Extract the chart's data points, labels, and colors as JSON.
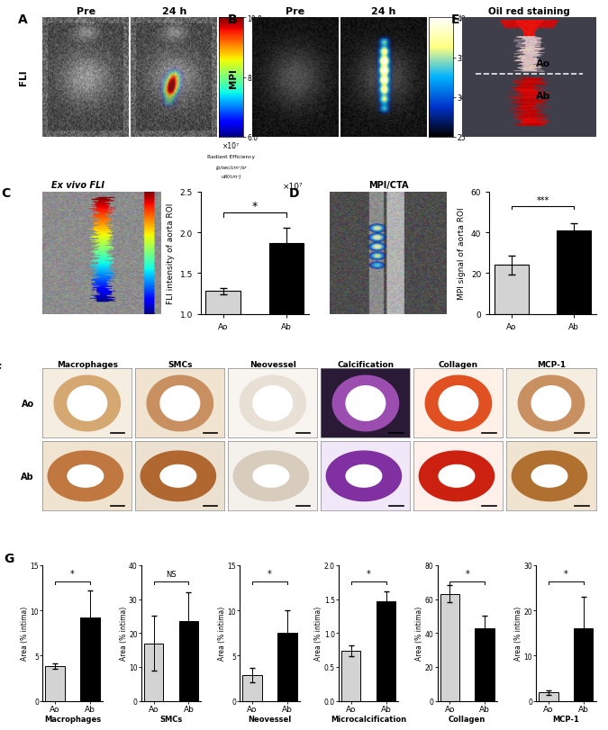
{
  "panel_labels": [
    "A",
    "B",
    "C",
    "D",
    "E",
    "F",
    "G"
  ],
  "colorbar_A_ticks": [
    6.0,
    8.0,
    10.0
  ],
  "colorbar_B_ticks": [
    25,
    30,
    35,
    40
  ],
  "bar_chart_C": {
    "categories": [
      "Ao",
      "Ab"
    ],
    "values": [
      1.28,
      1.87
    ],
    "errors": [
      0.04,
      0.18
    ],
    "colors": [
      "#d3d3d3",
      "#000000"
    ],
    "ylabel": "FLI intensity of aorta ROI",
    "ylim": [
      1.0,
      2.5
    ],
    "yticks": [
      1.0,
      1.5,
      2.0,
      2.5
    ],
    "title_super": "×10⁷",
    "sig_label": "*"
  },
  "bar_chart_D": {
    "categories": [
      "Ao",
      "Ab"
    ],
    "values": [
      24.0,
      41.0
    ],
    "errors": [
      4.5,
      3.5
    ],
    "colors": [
      "#d3d3d3",
      "#000000"
    ],
    "ylabel": "MPI signal of aorta ROI",
    "ylim": [
      0,
      60
    ],
    "yticks": [
      0,
      20,
      40,
      60
    ],
    "sig_label": "***"
  },
  "histology_labels": [
    "Macrophages",
    "SMCs",
    "Neovessel",
    "Calcification",
    "Collagen",
    "MCP-1"
  ],
  "hist_bg": "#f8f0e8",
  "hist_vessel_Ao": [
    "#d4956a",
    "#c8956a",
    "#e8e0d0",
    "#9b59b6",
    "#e05020",
    "#c89060"
  ],
  "hist_vessel_Ab": [
    "#c07840",
    "#b06830",
    "#d8ccc0",
    "#8040a0",
    "#cc2010",
    "#b07840"
  ],
  "bar_charts_G": [
    {
      "name": "Macrophages",
      "categories": [
        "Ao",
        "Ab"
      ],
      "values": [
        3.8,
        9.2
      ],
      "errors": [
        0.3,
        3.0
      ],
      "colors": [
        "#d3d3d3",
        "#000000"
      ],
      "ylabel": "Area (% intima)",
      "ylim": [
        0,
        15
      ],
      "yticks": [
        0,
        5,
        10,
        15
      ],
      "sig_label": "*"
    },
    {
      "name": "SMCs",
      "categories": [
        "Ao",
        "Ab"
      ],
      "values": [
        17.0,
        23.5
      ],
      "errors": [
        8.0,
        8.5
      ],
      "colors": [
        "#d3d3d3",
        "#000000"
      ],
      "ylabel": "Area (% intima)",
      "ylim": [
        0,
        40
      ],
      "yticks": [
        0,
        10,
        20,
        30,
        40
      ],
      "sig_label": "NS"
    },
    {
      "name": "Neovessel",
      "categories": [
        "Ao",
        "Ab"
      ],
      "values": [
        2.8,
        7.5
      ],
      "errors": [
        0.8,
        2.5
      ],
      "colors": [
        "#d3d3d3",
        "#000000"
      ],
      "ylabel": "Area (% intima)",
      "ylim": [
        0,
        15
      ],
      "yticks": [
        0,
        5,
        10,
        15
      ],
      "sig_label": "*"
    },
    {
      "name": "Microcalcification",
      "categories": [
        "Ao",
        "Ab"
      ],
      "values": [
        0.74,
        1.47
      ],
      "errors": [
        0.08,
        0.15
      ],
      "colors": [
        "#d3d3d3",
        "#000000"
      ],
      "ylabel": "Area (% intima)",
      "ylim": [
        0.0,
        2.0
      ],
      "yticks": [
        0.0,
        0.5,
        1.0,
        1.5,
        2.0
      ],
      "sig_label": "*"
    },
    {
      "name": "Collagen",
      "categories": [
        "Ao",
        "Ab"
      ],
      "values": [
        63.0,
        43.0
      ],
      "errors": [
        5.0,
        7.0
      ],
      "colors": [
        "#d3d3d3",
        "#000000"
      ],
      "ylabel": "Area (% intima)",
      "ylim": [
        0,
        80
      ],
      "yticks": [
        0,
        20,
        40,
        60,
        80
      ],
      "sig_label": "*"
    },
    {
      "name": "MCP-1",
      "categories": [
        "Ao",
        "Ab"
      ],
      "values": [
        1.8,
        16.0
      ],
      "errors": [
        0.5,
        7.0
      ],
      "colors": [
        "#d3d3d3",
        "#000000"
      ],
      "ylabel": "Area (% intima)",
      "ylim": [
        0,
        30
      ],
      "yticks": [
        0,
        10,
        20,
        30
      ],
      "sig_label": "*"
    }
  ],
  "figure_bg": "#ffffff",
  "panel_label_fontsize": 10,
  "tick_fontsize": 6.5,
  "axis_label_fontsize": 6.5,
  "bar_width": 0.55
}
